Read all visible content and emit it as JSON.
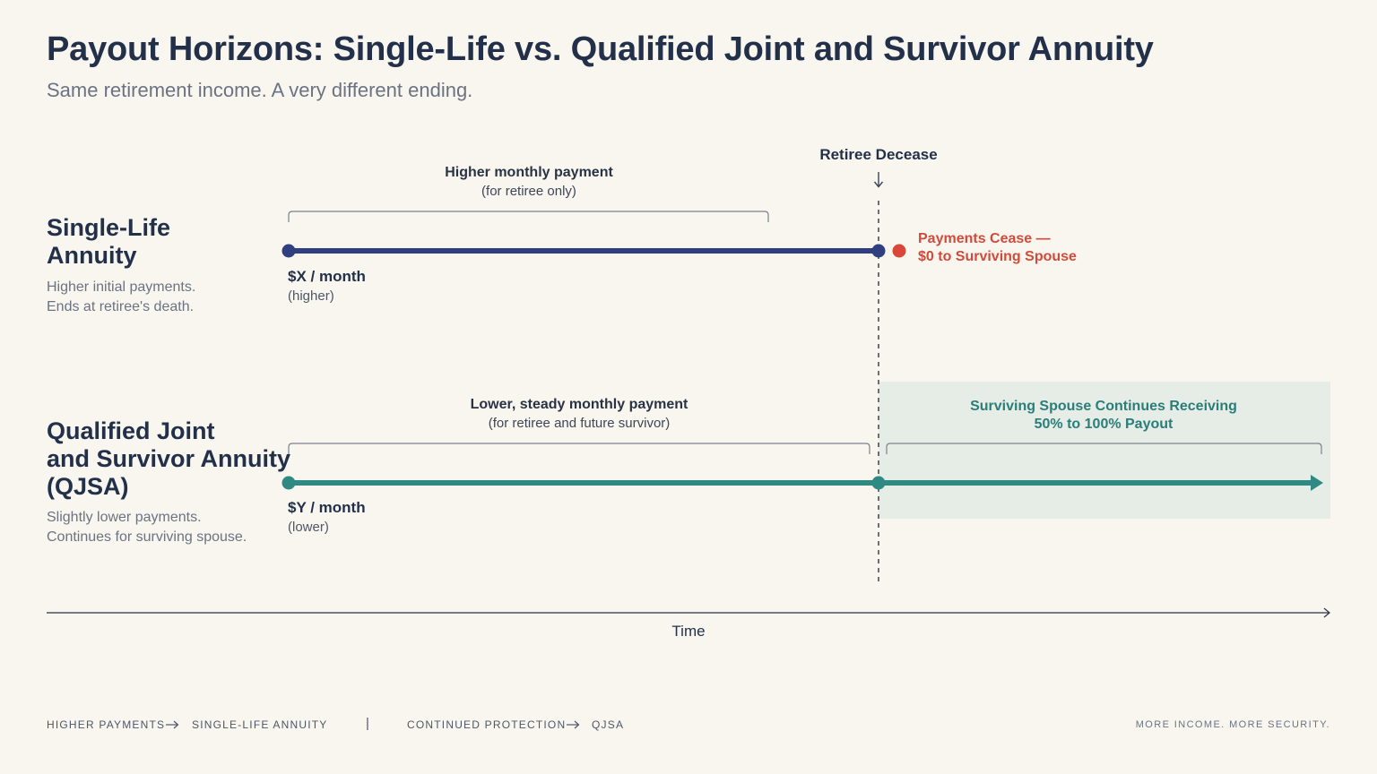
{
  "header": {
    "title": "Payout Horizons: Single-Life vs. Qualified Joint and Survivor Annuity",
    "subtitle": "Same retirement income. A very different ending."
  },
  "event": {
    "label": "Retiree Decease",
    "arrow_icon": "down-arrow-icon"
  },
  "single_life": {
    "title_line1": "Single-Life",
    "title_line2": "Annuity",
    "desc_line1": "Higher initial payments.",
    "desc_line2": "Ends at retiree's death.",
    "bracket_title": "Higher monthly payment",
    "bracket_sub": "(for retiree only)",
    "rate": "$X / month",
    "rate_note": "(higher)",
    "cease_line1": "Payments Cease —",
    "cease_line2": "$0 to Surviving Spouse",
    "color": "#2f3f7f",
    "cease_color": "#d9473a"
  },
  "qjsa": {
    "title_line1": "Qualified Joint",
    "title_line2": "and Survivor Annuity",
    "title_line3": "(QJSA)",
    "desc_line1": "Slightly lower payments.",
    "desc_line2": "Continues for surviving spouse.",
    "bracket_title": "Lower, steady monthly payment",
    "bracket_sub": "(for retiree and future survivor)",
    "rate": "$Y / month",
    "rate_note": "(lower)",
    "survivor_line1": "Surviving Spouse Continues Receiving",
    "survivor_line2": "50% to 100% Payout",
    "color": "#2f8a84",
    "survivor_bg": "#e6ece6"
  },
  "axis": {
    "label": "Time"
  },
  "footer": {
    "left_part1": "HIGHER PAYMENTS",
    "left_part2": "SINGLE-LIFE ANNUITY",
    "separator": "|",
    "mid_part1": "CONTINUED PROTECTION",
    "mid_part2": "QJSA",
    "arrow_icon": "right-arrow-icon",
    "right": "MORE INCOME. MORE SECURITY."
  }
}
